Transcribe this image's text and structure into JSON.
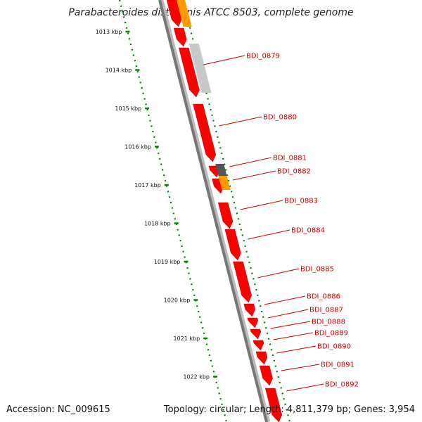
{
  "title": "Parabacteroides distasonis ATCC 8503, complete genome",
  "accession": "Accession: NC_009615",
  "summary": "Topology: circular; Length: 4,811,379 bp; Genes: 3,954",
  "colors": {
    "gene_red": "#ff0000",
    "gene_orange": "#ff9900",
    "gene_light_gray": "#c8c8c8",
    "gene_dark_gray": "#555555",
    "backbone": "#777777",
    "ruler_green": "#008000",
    "label_red": "#cc0000"
  },
  "ruler_labels": [
    "1013 kbp",
    "1014 kbp",
    "1015 kbp",
    "1016 kbp",
    "1017 kbp",
    "1018 kbp",
    "1019 kbp",
    "1020 kbp",
    "1021 kbp",
    "1022 kbp"
  ],
  "gene_labels": [
    "BDI_0879",
    "BDI_0880",
    "BDI_0881",
    "BDI_0882",
    "BDI_0883",
    "BDI_0884",
    "BDI_0885",
    "BDI_0886",
    "BDI_0887",
    "BDI_0888",
    "BDI_0889",
    "BDI_0890",
    "BDI_0891",
    "BDI_0892"
  ]
}
